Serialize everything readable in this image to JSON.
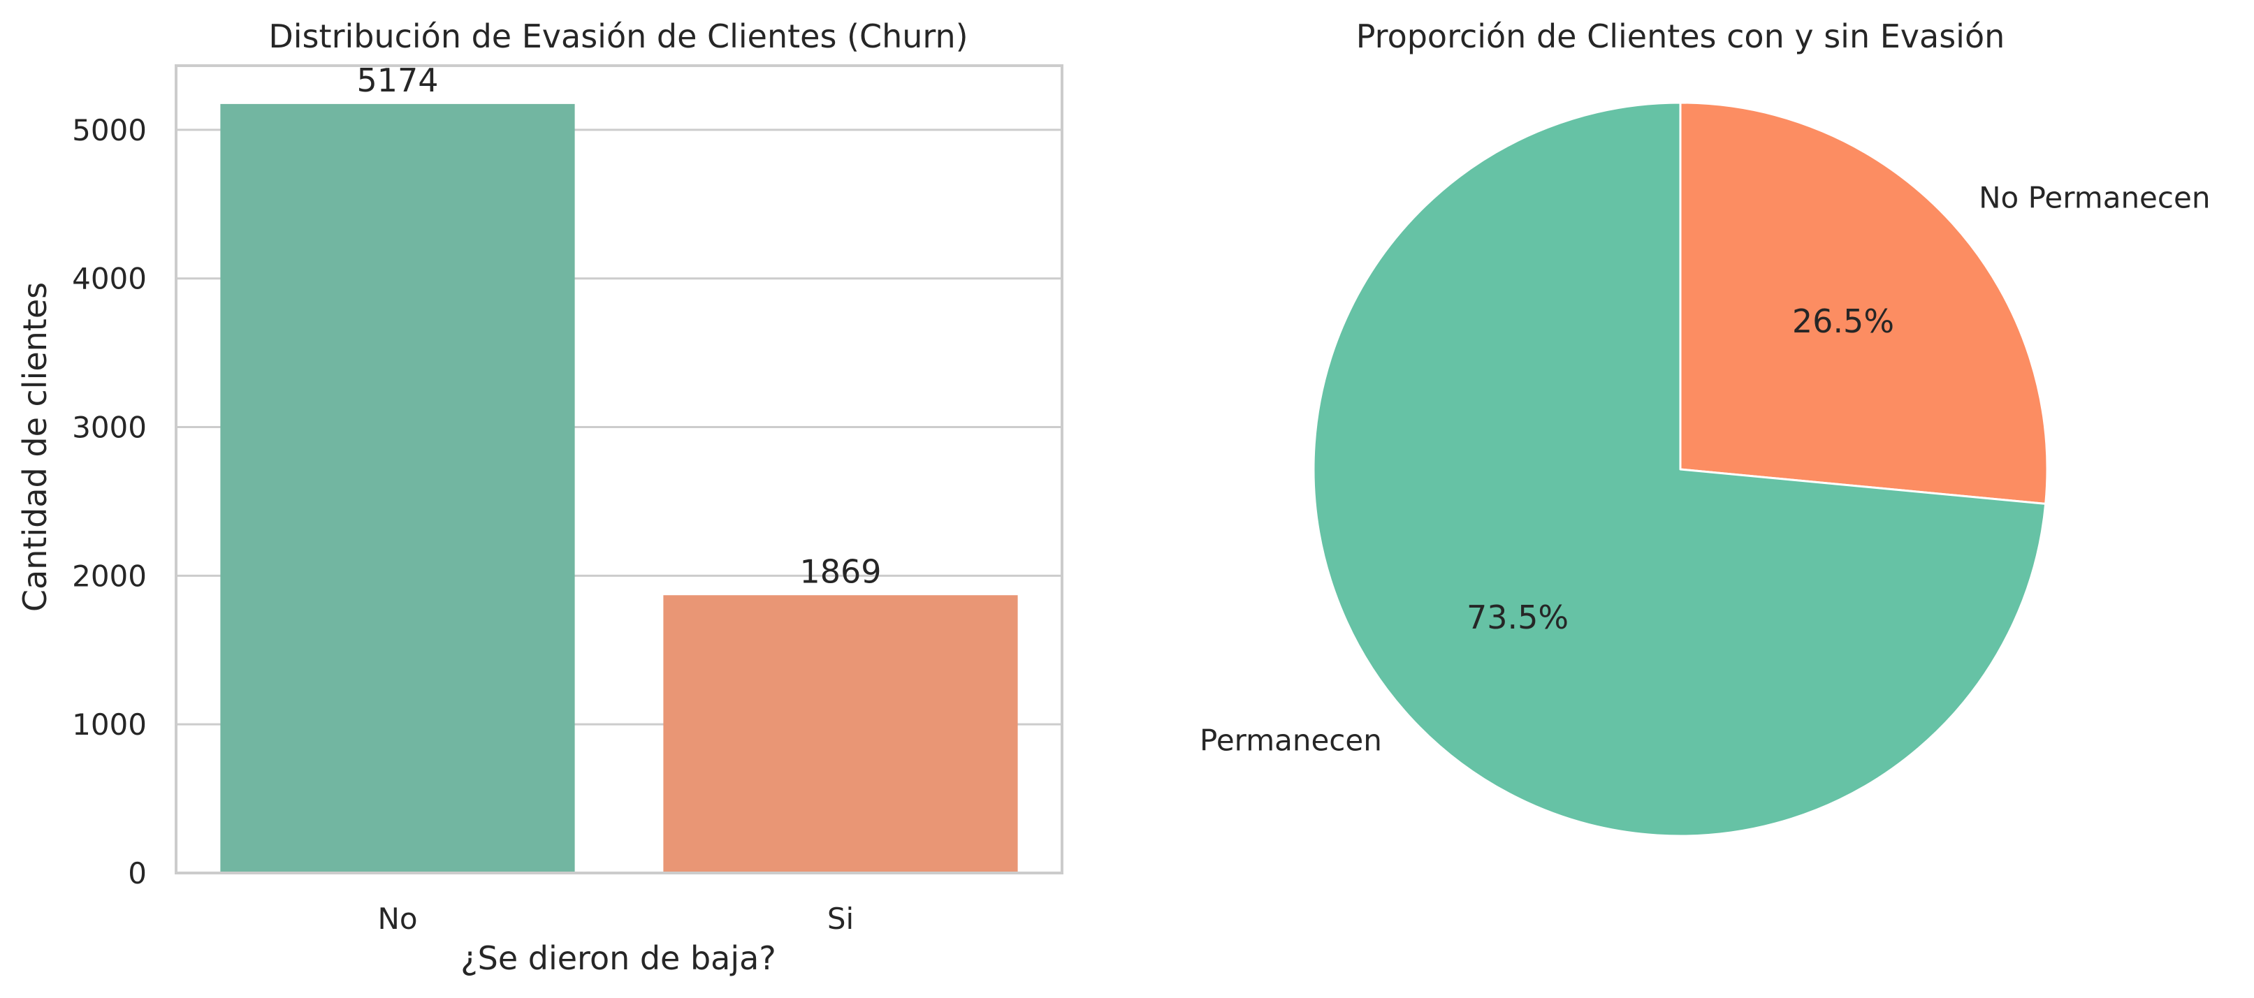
{
  "colors": {
    "bar_no": "#72b6a1",
    "bar_si": "#e99675",
    "pie_permanecen": "#66c2a5",
    "pie_no_permanecen": "#fc8d62",
    "grid": "#cccccc",
    "spine": "#cccccc",
    "text": "#262626"
  },
  "chart_data": [
    {
      "type": "bar",
      "title": "Distribución de Evasión de Clientes (Churn)",
      "xlabel": "¿Se dieron de baja?",
      "ylabel": "Cantidad de clientes",
      "categories": [
        "No",
        "Si"
      ],
      "values": [
        5174,
        1869
      ],
      "data_labels": [
        "5174",
        "1869"
      ],
      "ylim": [
        0,
        5432
      ],
      "yticks": [
        0,
        1000,
        2000,
        3000,
        4000,
        5000
      ],
      "ytick_labels": [
        "0",
        "1000",
        "2000",
        "3000",
        "4000",
        "5000"
      ],
      "grid": "horizontal"
    },
    {
      "type": "pie",
      "title": "Proporción de Clientes con y sin Evasión",
      "start_angle_deg": 90,
      "direction": "clockwise",
      "slices": [
        {
          "label": "No Permanecen",
          "value": 26.5,
          "pct_label": "26.5%"
        },
        {
          "label": "Permanecen",
          "value": 73.5,
          "pct_label": "73.5%"
        }
      ]
    }
  ]
}
